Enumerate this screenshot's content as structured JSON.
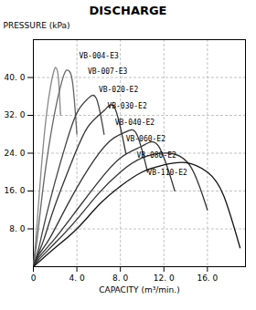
{
  "chart_data": {
    "type": "line",
    "title": "DISCHARGE",
    "xlabel": "CAPACITY (m³/min.)",
    "ylabel": "PRESSURE (kPa)",
    "xlim": [
      0,
      19.5
    ],
    "ylim": [
      0,
      48
    ],
    "xticks": [
      0,
      {
        "value": 4.0,
        "label": "4. 0"
      },
      {
        "value": 8.0,
        "label": "8. 0"
      },
      {
        "value": 12.0,
        "label": "12. 0"
      },
      {
        "value": 16.0,
        "label": "16. 0"
      }
    ],
    "yticks": [
      {
        "value": 8.0,
        "label": "8. 0"
      },
      {
        "value": 16.0,
        "label": "16. 0"
      },
      {
        "value": 24.0,
        "label": "24. 0"
      },
      {
        "value": 32.0,
        "label": "32. 0"
      },
      {
        "value": 40.0,
        "label": "40. 0"
      }
    ],
    "grid": true,
    "series": [
      {
        "name": "VB-004-E3",
        "color": "#888888",
        "x": [
          0.0,
          0.3,
          0.7,
          1.1,
          1.5,
          1.9,
          2.1,
          2.3,
          2.5
        ],
        "values": [
          0.0,
          8.0,
          20.0,
          30.0,
          37.0,
          41.5,
          42.0,
          40.0,
          32.0
        ]
      },
      {
        "name": "VB-007-E3",
        "color": "#666666",
        "x": [
          0.0,
          0.3,
          0.7,
          1.2,
          2.0,
          2.8,
          3.2,
          3.6,
          4.0
        ],
        "values": [
          0.0,
          5.0,
          13.0,
          22.0,
          33.0,
          40.5,
          41.5,
          39.0,
          28.0
        ]
      },
      {
        "name": "VB-020-E2",
        "color": "#444444",
        "x": [
          0.0,
          0.5,
          1.0,
          2.0,
          3.0,
          4.0,
          5.0,
          5.8,
          6.5
        ],
        "values": [
          0.0,
          4.0,
          9.0,
          18.0,
          26.0,
          32.5,
          35.5,
          35.5,
          28.0
        ]
      },
      {
        "name": "VB-030-E2",
        "color": "#333333",
        "x": [
          0.0,
          0.5,
          1.0,
          2.0,
          3.5,
          5.0,
          6.5,
          7.5,
          8.5
        ],
        "values": [
          0.0,
          3.0,
          6.0,
          13.0,
          22.0,
          29.5,
          33.0,
          33.5,
          24.0
        ]
      },
      {
        "name": "VB-040-E2",
        "color": "#333333",
        "x": [
          0.0,
          0.5,
          1.5,
          3.0,
          5.0,
          7.0,
          8.5,
          9.5,
          10.5
        ],
        "values": [
          0.0,
          2.5,
          6.0,
          12.5,
          20.5,
          26.5,
          28.5,
          28.0,
          20.0
        ]
      },
      {
        "name": "VB-060-E2",
        "color": "#333333",
        "x": [
          0.0,
          0.5,
          2.0,
          4.0,
          6.0,
          8.0,
          10.0,
          11.5,
          13.0
        ],
        "values": [
          0.0,
          2.0,
          6.0,
          12.0,
          18.0,
          23.0,
          25.5,
          25.5,
          16.0
        ]
      },
      {
        "name": "VB-080-E2",
        "color": "#333333",
        "x": [
          0.0,
          0.5,
          2.0,
          4.0,
          6.0,
          8.0,
          10.0,
          12.5,
          14.5,
          16.0
        ],
        "values": [
          0.0,
          1.5,
          5.0,
          10.0,
          15.5,
          20.0,
          23.0,
          24.0,
          21.0,
          12.0
        ]
      },
      {
        "name": "VB-110-E2",
        "color": "#111111",
        "x": [
          0.0,
          0.5,
          2.0,
          4.0,
          6.0,
          8.0,
          10.0,
          12.0,
          14.0,
          16.0,
          17.5,
          19.0
        ],
        "values": [
          0.0,
          1.0,
          4.0,
          8.0,
          13.0,
          17.0,
          20.0,
          21.5,
          22.0,
          20.0,
          15.0,
          4.0
        ]
      }
    ],
    "annotations": [
      {
        "text": "VB-004-E3",
        "x": 4.2,
        "y": 44.5
      },
      {
        "text": "VB-007-E3",
        "x": 5.0,
        "y": 41.2
      },
      {
        "text": "VB-020-E2",
        "x": 6.0,
        "y": 37.5
      },
      {
        "text": "VB-030-E2",
        "x": 6.8,
        "y": 34.0
      },
      {
        "text": "VB-040-E2",
        "x": 7.5,
        "y": 30.5
      },
      {
        "text": "VB-060-E2",
        "x": 8.5,
        "y": 27.0
      },
      {
        "text": "VB-080-E2",
        "x": 9.5,
        "y": 23.5
      },
      {
        "text": "VB-110-E2",
        "x": 10.5,
        "y": 19.8
      }
    ]
  }
}
